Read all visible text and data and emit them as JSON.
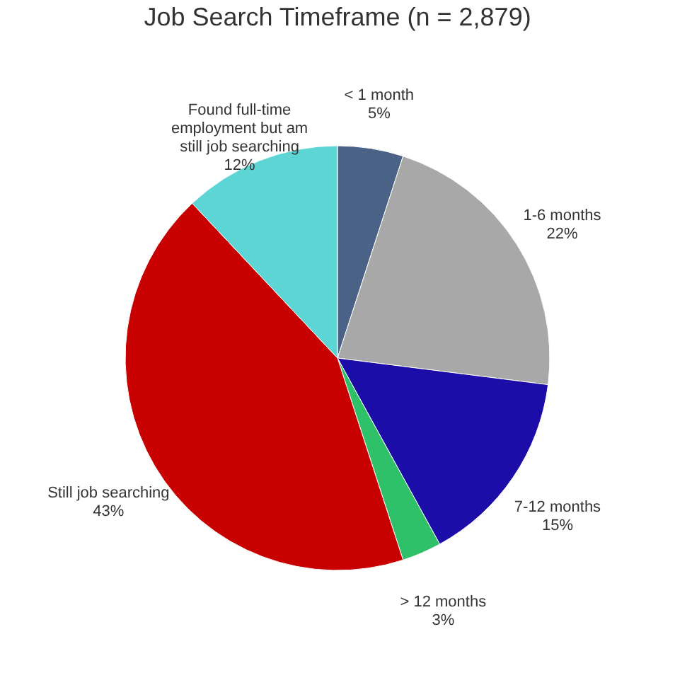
{
  "chart_data": {
    "type": "pie",
    "title": "Job Search Timeframe (n = 2,879)",
    "categories": [
      "< 1 month",
      "1-6 months",
      "7-12 months",
      "> 12 months",
      "Still job searching",
      "Found full-time employment but am still job searching"
    ],
    "values": [
      5,
      22,
      15,
      3,
      43,
      12
    ],
    "value_labels": [
      "5%",
      "22%",
      "15%",
      "3%",
      "43%",
      "12%"
    ],
    "colors": [
      "#4a6285",
      "#a8a8a8",
      "#1c0ca8",
      "#2fc06a",
      "#c80000",
      "#5ed5d5"
    ],
    "legend": false
  }
}
